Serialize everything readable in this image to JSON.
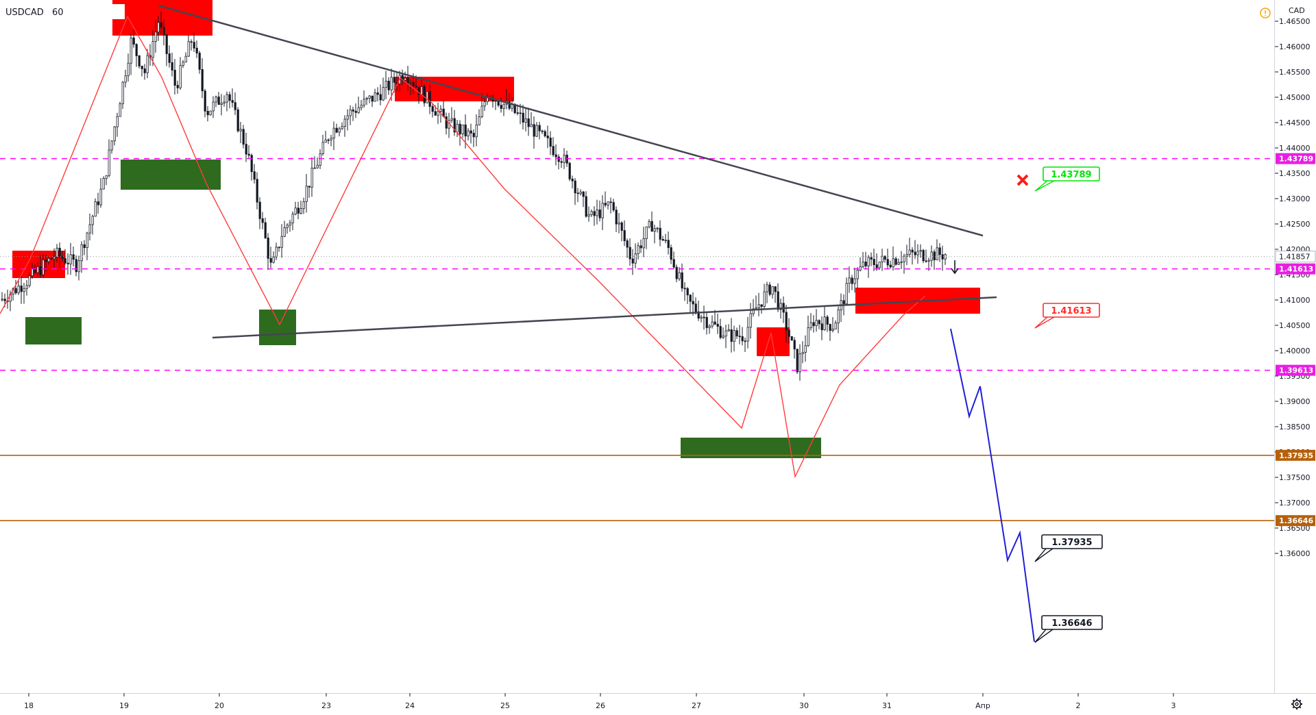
{
  "chart_data": {
    "type": "candlestick",
    "symbol": "USDCAD",
    "interval": "60",
    "currency": "CAD",
    "y_ticks": [
      "1.46500",
      "1.46000",
      "1.45500",
      "1.45000",
      "1.44500",
      "1.44000",
      "1.43500",
      "1.43000",
      "1.42500",
      "1.42000",
      "1.41500",
      "1.41000",
      "1.40500",
      "1.40000",
      "1.39500",
      "1.39000",
      "1.38500",
      "1.38000",
      "1.37500",
      "1.37000",
      "1.36500",
      "1.36000"
    ],
    "x_ticks": [
      "18",
      "19",
      "20",
      "23",
      "24",
      "25",
      "26",
      "27",
      "30",
      "31",
      "Апр",
      "2",
      "3"
    ],
    "ylim": [
      1.3565,
      1.4675
    ],
    "current_price": {
      "label": "1.41857",
      "value": 1.41857
    },
    "levels": [
      {
        "label": "1.43789",
        "value": 1.43789,
        "style": "dashed",
        "color": "#ff00ff",
        "tag_color": "#e91ee3"
      },
      {
        "label": "1.41613",
        "value": 1.41613,
        "style": "dashed",
        "color": "#ff00ff",
        "tag_color": "#e91ee3"
      },
      {
        "label": "1.39613",
        "value": 1.39613,
        "style": "dashed",
        "color": "#ff00ff",
        "tag_color": "#e91ee3"
      },
      {
        "label": "1.37935",
        "value": 1.37935,
        "style": "solid",
        "color": "#b7600a",
        "tag_color": "#b7600a"
      },
      {
        "label": "1.36646",
        "value": 1.36646,
        "style": "solid",
        "color": "#b7600a",
        "tag_color": "#b7600a"
      }
    ],
    "callouts": [
      {
        "label": "1.43789",
        "color": "#00e600",
        "value": 1.43789
      },
      {
        "label": "1.41613",
        "color": "#ff2b2b",
        "value": 1.41613
      },
      {
        "label": "1.37935",
        "color": "#131722",
        "value": 1.37935
      },
      {
        "label": "1.36646",
        "color": "#131722",
        "value": 1.36646
      }
    ],
    "colors": {
      "supply": "#ff0000",
      "demand": "#2e6b1f",
      "zigzag": "#ff3b3b",
      "trendline": "#434651",
      "projection": "#1f1fd6",
      "candle": "#131722"
    },
    "icons": {
      "cancel": "cross-icon",
      "warning": "warning-icon",
      "settings": "gear-icon",
      "signal": "down-arrow-icon"
    }
  }
}
